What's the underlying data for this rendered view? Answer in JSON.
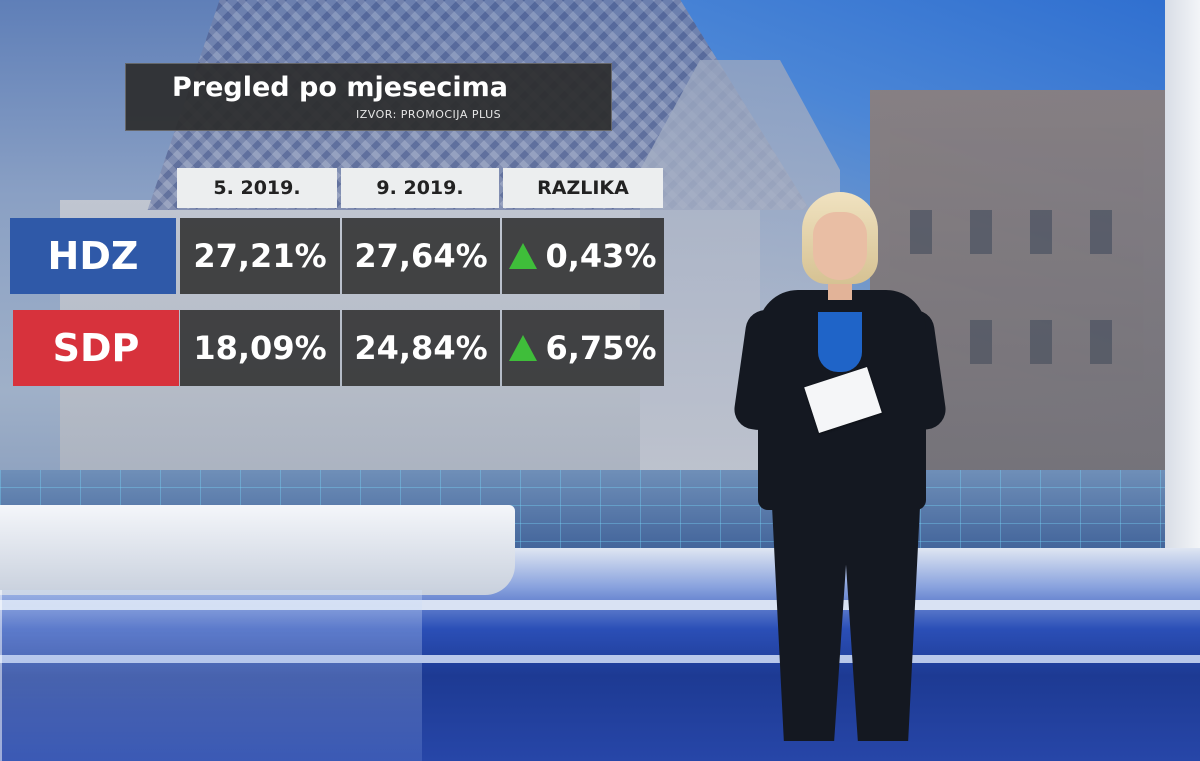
{
  "graphic": {
    "title": "Pregled po mjesecima",
    "source": "IZVOR: PROMOCIJA PLUS",
    "columns": [
      "5. 2019.",
      "9. 2019.",
      "RAZLIKA"
    ],
    "rows": [
      {
        "party": "HDZ",
        "color": "#2f59a8",
        "v1": "27,21%",
        "v2": "27,64%",
        "diff": "0,43%",
        "trend": "up-arrow-icon"
      },
      {
        "party": "SDP",
        "color": "#d7323c",
        "v1": "18,09%",
        "v2": "24,84%",
        "diff": "6,75%",
        "trend": "up-arrow-icon"
      }
    ],
    "trend_color": "#3fbe3a"
  }
}
